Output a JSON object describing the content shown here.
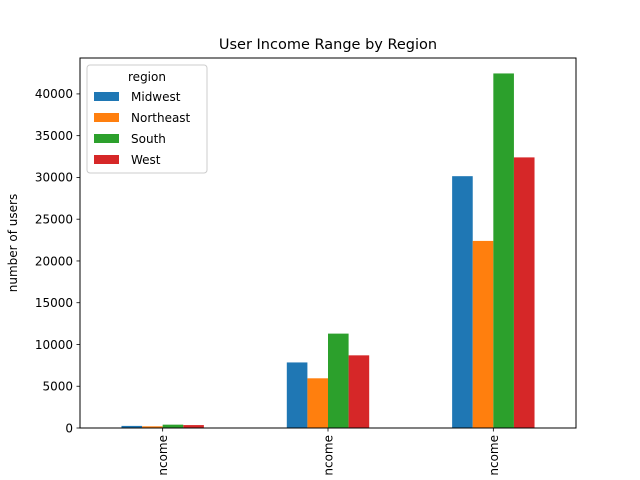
{
  "chart_data": {
    "type": "bar",
    "title": "User Income Range by Region",
    "xlabel": "",
    "ylabel": "number of users",
    "categories": [
      "ncome",
      "ncome",
      "ncome"
    ],
    "ylim": [
      0,
      44300
    ],
    "yticks": [
      0,
      5000,
      10000,
      15000,
      20000,
      25000,
      30000,
      35000,
      40000
    ],
    "grid": false,
    "legend": {
      "title": "region",
      "placement": "top-left"
    },
    "series": [
      {
        "name": "Midwest",
        "color": "#1f77b4",
        "values": [
          250,
          7850,
          30150
        ]
      },
      {
        "name": "Northeast",
        "color": "#ff7f0e",
        "values": [
          200,
          5950,
          22400
        ]
      },
      {
        "name": "South",
        "color": "#2ca02c",
        "values": [
          400,
          11300,
          42450
        ]
      },
      {
        "name": "West",
        "color": "#d62728",
        "values": [
          350,
          8700,
          32400
        ]
      }
    ]
  }
}
